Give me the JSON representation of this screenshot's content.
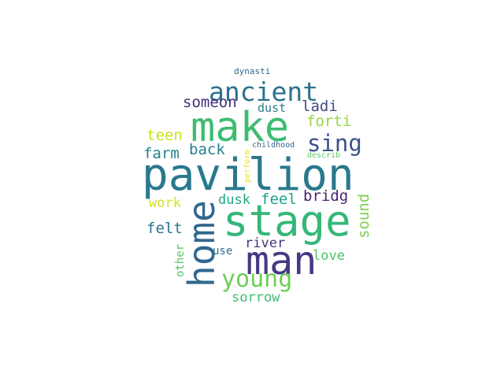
{
  "words": [
    {
      "text": "pavilion",
      "color": "#2a788e"
    },
    {
      "text": "make",
      "color": "#3fbc73"
    },
    {
      "text": "stage",
      "color": "#35b779"
    },
    {
      "text": "home",
      "color": "#31688e"
    },
    {
      "text": "man",
      "color": "#443983"
    },
    {
      "text": "ancient",
      "color": "#2c728e"
    },
    {
      "text": "sing",
      "color": "#3b528b"
    },
    {
      "text": "young",
      "color": "#6ece58"
    },
    {
      "text": "bridg",
      "color": "#481f70"
    },
    {
      "text": "sound",
      "color": "#7ad151"
    },
    {
      "text": "someon",
      "color": "#472d7b"
    },
    {
      "text": "ladi",
      "color": "#3e4989"
    },
    {
      "text": "forti",
      "color": "#93d741"
    },
    {
      "text": "back",
      "color": "#277f8e"
    },
    {
      "text": "farm",
      "color": "#25838e"
    },
    {
      "text": "teen",
      "color": "#cde11d"
    },
    {
      "text": "felt",
      "color": "#2c728e"
    },
    {
      "text": "feel",
      "color": "#1fa188"
    },
    {
      "text": "work",
      "color": "#d2e21b"
    },
    {
      "text": "dusk",
      "color": "#22a785"
    },
    {
      "text": "love",
      "color": "#4ac16d"
    },
    {
      "text": "sorrow",
      "color": "#3dbc74"
    },
    {
      "text": "river",
      "color": "#46337f"
    },
    {
      "text": "use",
      "color": "#2e6e8e"
    },
    {
      "text": "dust",
      "color": "#287d8e"
    },
    {
      "text": "other",
      "color": "#56c667"
    },
    {
      "text": "perform",
      "color": "#e5e419"
    },
    {
      "text": "childhood",
      "color": "#33638d"
    },
    {
      "text": "describ",
      "color": "#5ec962"
    },
    {
      "text": "dynasti",
      "color": "#31688e"
    }
  ]
}
